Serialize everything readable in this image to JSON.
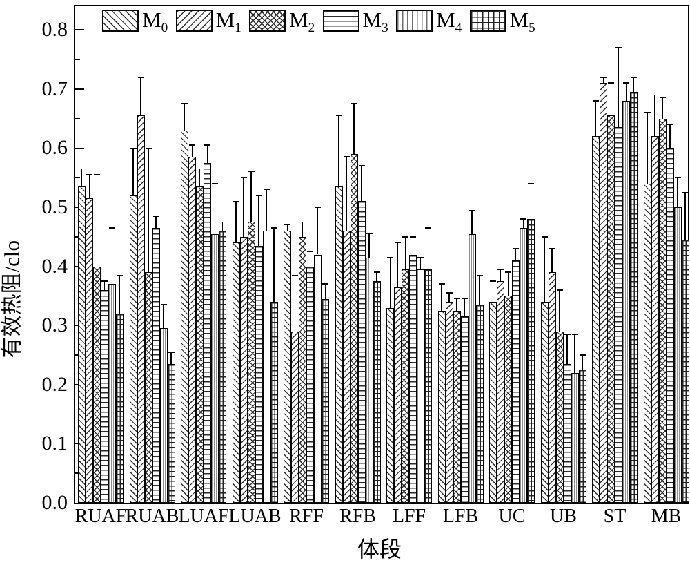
{
  "chart_data": {
    "type": "bar",
    "title": "",
    "xlabel": "体段",
    "ylabel": "有效热阻/clo",
    "ylim": [
      0,
      0.84
    ],
    "ytick_step": 0.1,
    "minor_tick_step": 0.05,
    "yticks": [
      "0.0",
      "0.1",
      "0.2",
      "0.3",
      "0.4",
      "0.5",
      "0.6",
      "0.7",
      "0.8"
    ],
    "grid": false,
    "legend_position": "top-inside",
    "bar_fill": "#ffffff",
    "line_color": "#000000",
    "categories": [
      "RUAF",
      "RUAB",
      "LUAF",
      "LUAB",
      "RFF",
      "RFB",
      "LFF",
      "LFB",
      "UC",
      "UB",
      "ST",
      "MB"
    ],
    "series": [
      {
        "name": "M0",
        "label_main": "M",
        "label_sub": "0",
        "pattern": "forward-diagonal-hatch",
        "values": [
          0.535,
          0.52,
          0.63,
          0.44,
          0.46,
          0.535,
          0.33,
          0.325,
          0.34,
          0.34,
          0.62,
          0.54
        ],
        "errors_plus": [
          0.03,
          0.08,
          0.045,
          0.07,
          0.01,
          0.12,
          0.085,
          0.045,
          0.035,
          0.11,
          0.06,
          0.12
        ]
      },
      {
        "name": "M1",
        "label_main": "M",
        "label_sub": "1",
        "pattern": "backward-diagonal-hatch",
        "values": [
          0.515,
          0.655,
          0.585,
          0.45,
          0.29,
          0.46,
          0.365,
          0.34,
          0.375,
          0.39,
          0.71,
          0.62
        ],
        "errors_plus": [
          0.04,
          0.065,
          0.02,
          0.1,
          0.095,
          0.125,
          0.075,
          0.015,
          0.02,
          0.04,
          0.01,
          0.07
        ]
      },
      {
        "name": "M2",
        "label_main": "M",
        "label_sub": "2",
        "pattern": "cross-diagonal-hatch",
        "values": [
          0.4,
          0.39,
          0.535,
          0.475,
          0.45,
          0.59,
          0.395,
          0.325,
          0.35,
          0.29,
          0.655,
          0.65
        ],
        "errors_plus": [
          0.155,
          0.21,
          0.03,
          0.085,
          0.025,
          0.085,
          0.055,
          0.02,
          0.04,
          0.07,
          0.055,
          0.035
        ]
      },
      {
        "name": "M3",
        "label_main": "M",
        "label_sub": "3",
        "pattern": "horizontal-lines",
        "values": [
          0.36,
          0.465,
          0.575,
          0.435,
          0.4,
          0.51,
          0.42,
          0.315,
          0.41,
          0.235,
          0.635,
          0.6
        ],
        "errors_plus": [
          0.015,
          0.02,
          0.03,
          0.085,
          0.025,
          0.06,
          0.03,
          0.03,
          0.02,
          0.05,
          0.135,
          0.04
        ]
      },
      {
        "name": "M4",
        "label_main": "M",
        "label_sub": "4",
        "pattern": "vertical-lines",
        "values": [
          0.37,
          0.295,
          0.455,
          0.46,
          0.42,
          0.415,
          0.395,
          0.455,
          0.465,
          0.22,
          0.68,
          0.5
        ],
        "errors_plus": [
          0.095,
          0.04,
          0.085,
          0.07,
          0.08,
          0.04,
          0.02,
          0.04,
          0.015,
          0.065,
          0.03,
          0.05
        ]
      },
      {
        "name": "M5",
        "label_main": "M",
        "label_sub": "5",
        "pattern": "grid",
        "values": [
          0.32,
          0.235,
          0.46,
          0.34,
          0.345,
          0.375,
          0.395,
          0.335,
          0.48,
          0.225,
          0.695,
          0.445
        ],
        "errors_plus": [
          0.065,
          0.02,
          0.015,
          0.125,
          0.025,
          0.015,
          0.07,
          0.05,
          0.06,
          0.025,
          0.025,
          0.08
        ]
      }
    ]
  }
}
